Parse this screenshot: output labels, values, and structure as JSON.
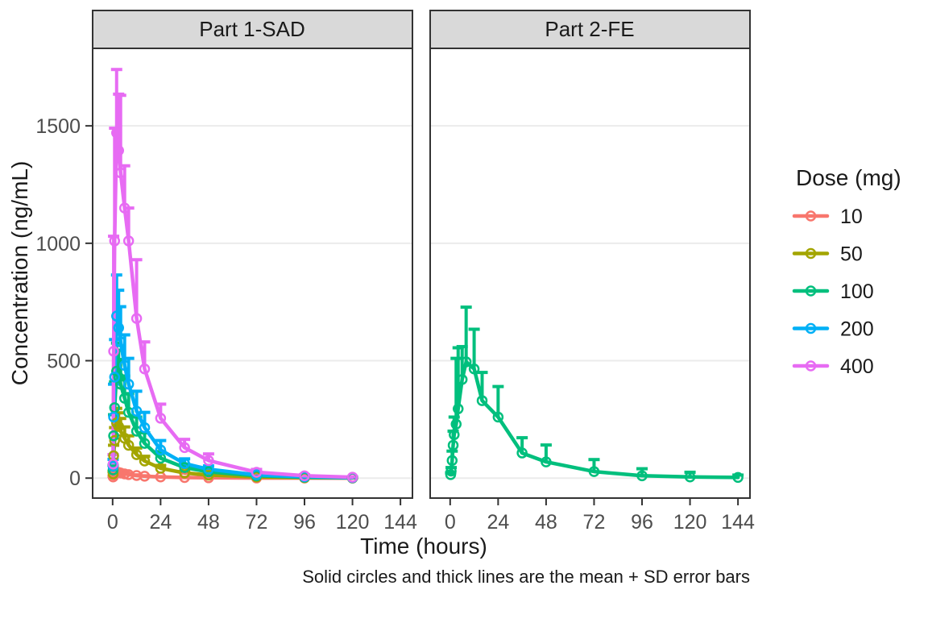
{
  "chart_data": {
    "type": "line",
    "title": "",
    "xlabel": "Time (hours)",
    "ylabel": "Concentration (ng/mL)",
    "caption": "Solid circles and thick lines are the mean + SD error bars",
    "x_ticks": [
      0,
      24,
      48,
      72,
      96,
      120,
      144
    ],
    "y_ticks": [
      0,
      500,
      1000,
      1500
    ],
    "xlim": [
      -10,
      150
    ],
    "ylim": [
      -85,
      1830
    ],
    "grid": "horizontal-major-only",
    "error_bars": "mean + SD, upper only, with caps",
    "marker": "open-circle",
    "legend": {
      "title": "Dose (mg)",
      "position": "right",
      "entries": [
        {
          "label": "10",
          "color": "#F8766D"
        },
        {
          "label": "50",
          "color": "#A3A500"
        },
        {
          "label": "100",
          "color": "#00BF7D"
        },
        {
          "label": "200",
          "color": "#00B0F6"
        },
        {
          "label": "400",
          "color": "#E76BF3"
        }
      ]
    },
    "panels": [
      {
        "label": "Part 1-SAD",
        "series": [
          {
            "dose": "10",
            "color": "#F8766D",
            "t": [
              0.25,
              0.5,
              1,
              2,
              3,
              4,
              6,
              8,
              12,
              16,
              24,
              36,
              48,
              72,
              96,
              120
            ],
            "mean": [
              5,
              14,
              20,
              26,
              24,
              22,
              18,
              15,
              11,
              8,
              5,
              2.5,
              1.5,
              0.6,
              0.3,
              0.1
            ],
            "sd": [
              3,
              6,
              7,
              8,
              7,
              6,
              5,
              4,
              3,
              2,
              1.5,
              1,
              0.6,
              0.3,
              0.2,
              0.1
            ]
          },
          {
            "dose": "50",
            "color": "#A3A500",
            "t": [
              0.25,
              0.5,
              1,
              2,
              3,
              4,
              6,
              8,
              12,
              16,
              24,
              36,
              48,
              72,
              96,
              120
            ],
            "mean": [
              18,
              95,
              160,
              235,
              220,
              200,
              170,
              140,
              100,
              73,
              42,
              22,
              13,
              5,
              2,
              1
            ],
            "sd": [
              10,
              45,
              55,
              62,
              58,
              54,
              48,
              40,
              28,
              20,
              12,
              7,
              4,
              2,
              1,
              0.5
            ]
          },
          {
            "dose": "100",
            "color": "#00BF7D",
            "t": [
              0.25,
              0.5,
              1,
              2,
              3,
              4,
              6,
              8,
              12,
              16,
              24,
              36,
              48,
              72,
              96,
              120
            ],
            "mean": [
              35,
              180,
              300,
              455,
              430,
              400,
              340,
              280,
              200,
              148,
              85,
              45,
              27,
              10,
              4,
              1.5
            ],
            "sd": [
              20,
              90,
              110,
              120,
              115,
              105,
              95,
              80,
              60,
              45,
              28,
              14,
              9,
              4,
              2,
              1
            ]
          },
          {
            "dose": "200",
            "color": "#00B0F6",
            "t": [
              0.25,
              0.5,
              1,
              2,
              3,
              4,
              6,
              8,
              12,
              16,
              24,
              36,
              48,
              72,
              96,
              120
            ],
            "mean": [
              50,
              260,
              430,
              690,
              640,
              580,
              480,
              400,
              285,
              215,
              120,
              62,
              38,
              14,
              6,
              2
            ],
            "sd": [
              30,
              140,
              160,
              175,
              160,
              150,
              130,
              110,
              85,
              65,
              40,
              20,
              14,
              6,
              3,
              1
            ]
          },
          {
            "dose": "400",
            "color": "#E76BF3",
            "t": [
              0.25,
              0.5,
              1,
              2,
              3,
              4,
              6,
              8,
              12,
              16,
              24,
              36,
              48,
              72,
              96,
              120
            ],
            "mean": [
              60,
              540,
              1010,
              1470,
              1395,
              1300,
              1150,
              1010,
              680,
              465,
              255,
              130,
              75,
              25,
              10,
              4
            ],
            "sd": [
              40,
              490,
              480,
              270,
              240,
              330,
              180,
              140,
              250,
              115,
              60,
              35,
              28,
              12,
              5,
              2
            ]
          }
        ]
      },
      {
        "label": "Part 2-FE",
        "series": [
          {
            "dose": "100",
            "color": "#00BF7D",
            "t": [
              0.25,
              0.5,
              1,
              1.5,
              2,
              3,
              4,
              6,
              8,
              12,
              16,
              24,
              36,
              48,
              72,
              96,
              120,
              144
            ],
            "mean": [
              15,
              30,
              75,
              140,
              185,
              230,
              295,
              420,
              495,
              465,
              330,
              260,
              107,
              69,
              28,
              10,
              5,
              3
            ],
            "sd": [
              8,
              15,
              40,
              60,
              75,
              280,
              260,
              140,
              233,
              169,
              120,
              130,
              65,
              72,
              51,
              30,
              20,
              10
            ]
          }
        ]
      }
    ],
    "theme": {
      "background": "#ffffff",
      "strip_fill": "#d9d9d9",
      "strip_border": "#333333",
      "panel_border": "#333333",
      "grid_color": "#ebebeb",
      "tick_color": "#333333",
      "tick_label_color": "#4d4d4d",
      "text_color": "#1a1a1a"
    }
  }
}
